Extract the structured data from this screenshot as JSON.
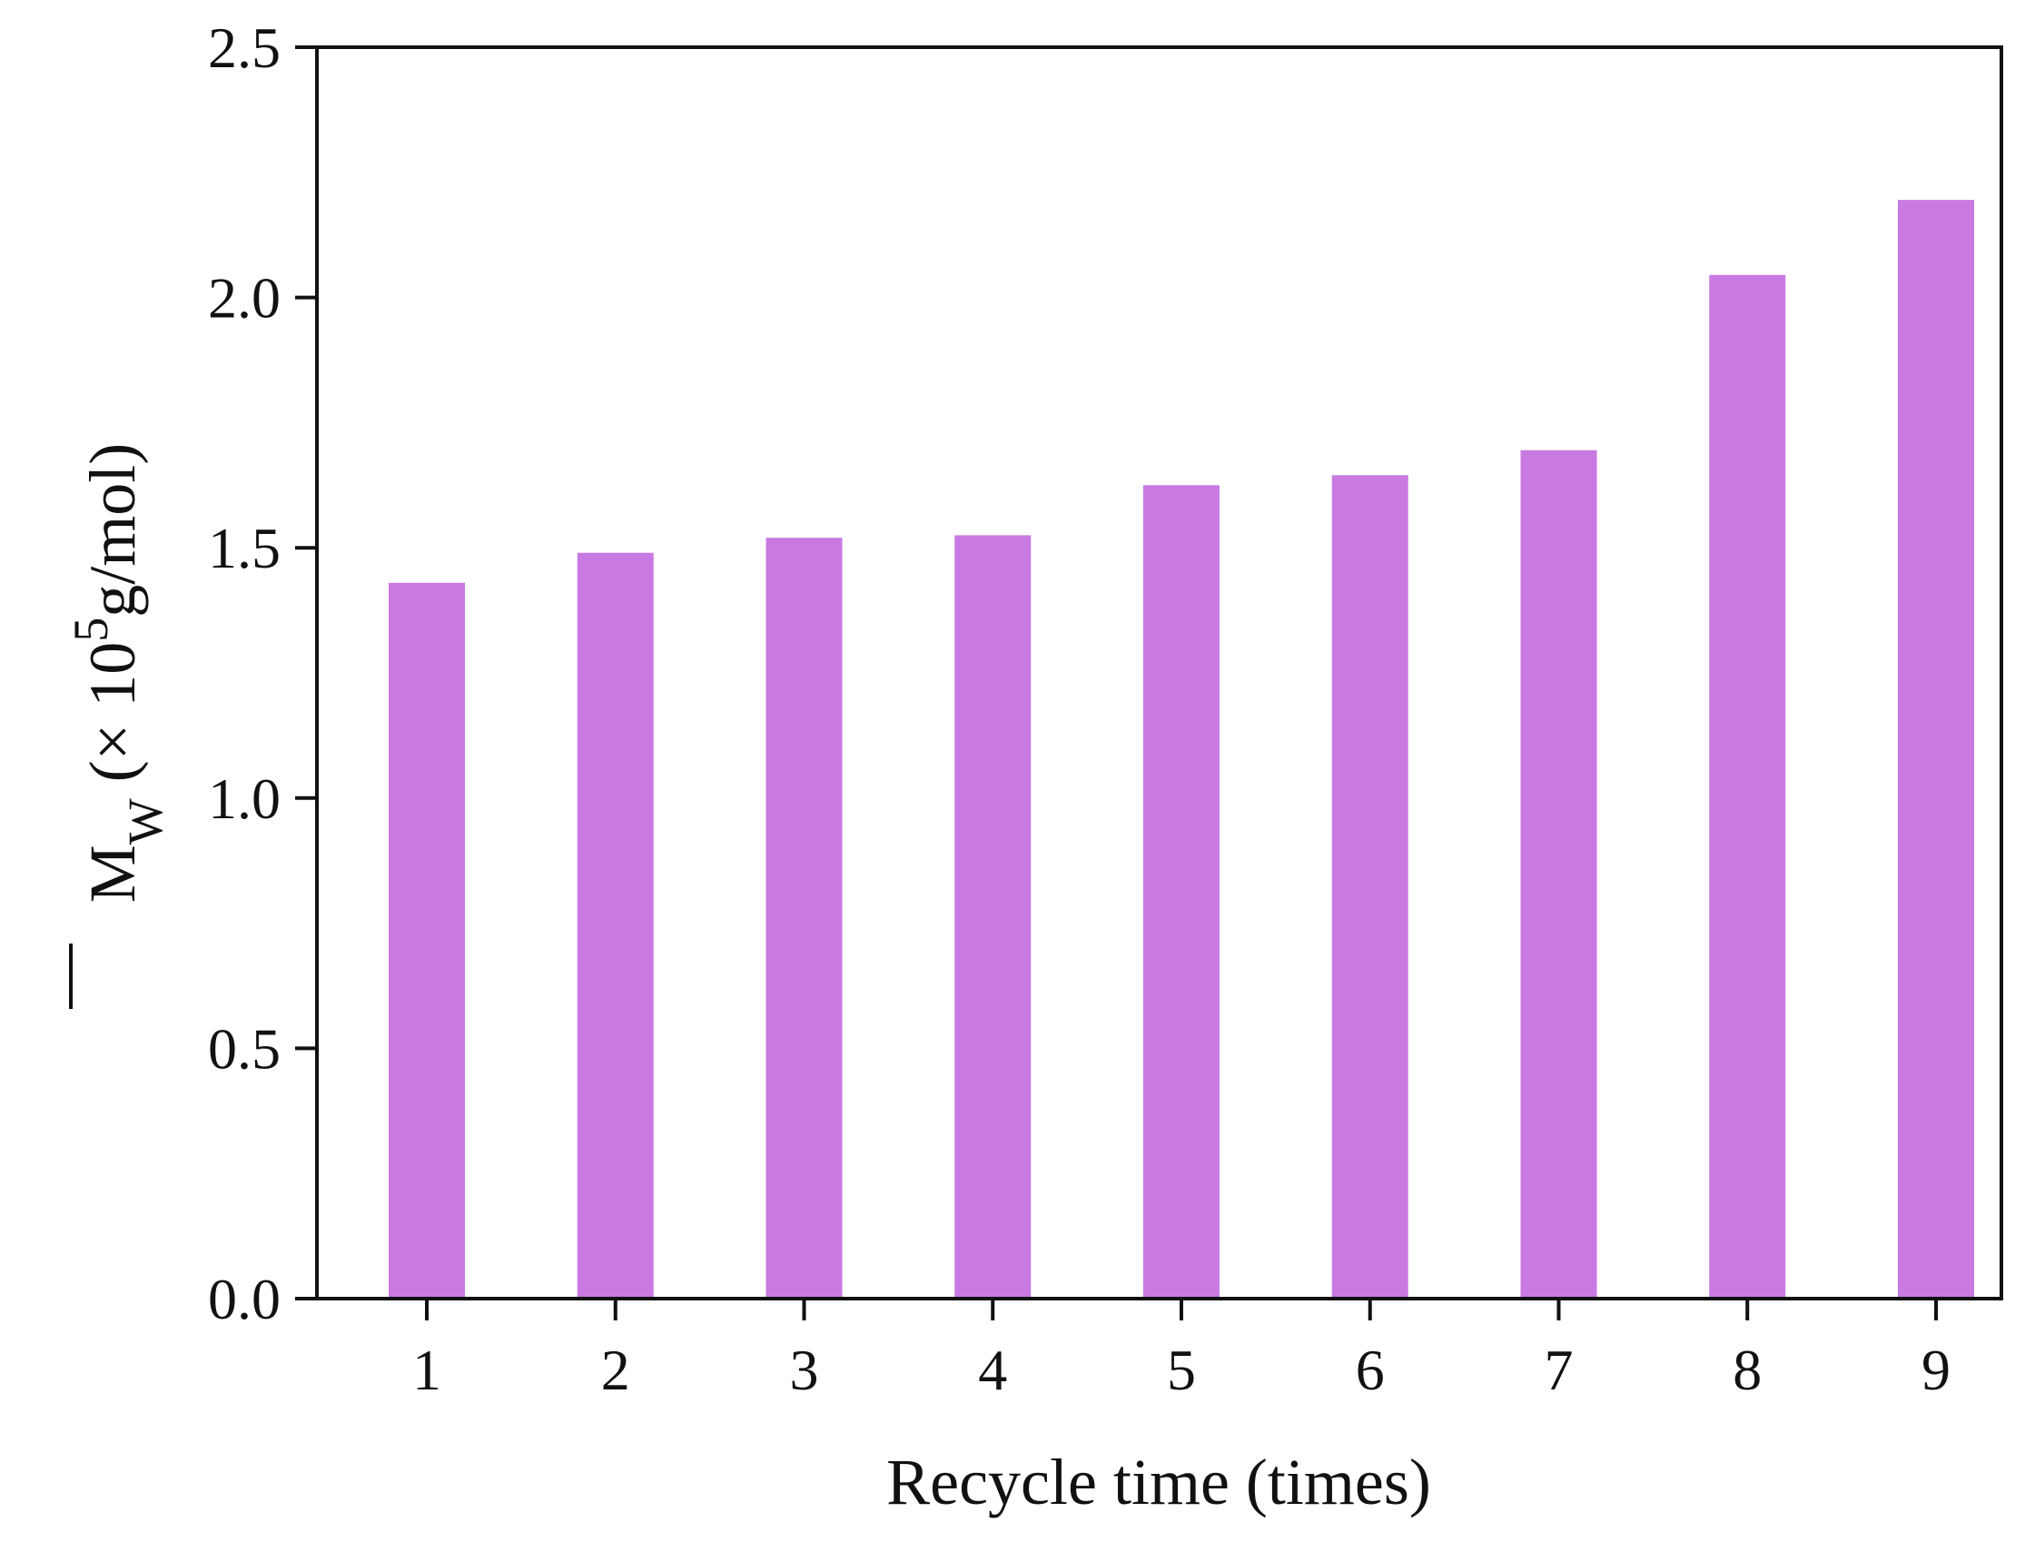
{
  "chart_data": {
    "type": "bar",
    "categories": [
      "1",
      "2",
      "3",
      "4",
      "5",
      "6",
      "7",
      "8",
      "9"
    ],
    "values": [
      1.43,
      1.49,
      1.52,
      1.525,
      1.625,
      1.645,
      1.695,
      2.045,
      2.195
    ],
    "xlabel": "Recycle time (times)",
    "ylabel": {
      "symbol": "M",
      "subscript": "W",
      "prefix": " (× 10",
      "exponent": "5",
      "suffix": "g/mol)"
    },
    "ylim": [
      0,
      2.5
    ],
    "yticks": [
      "0.0",
      "0.5",
      "1.0",
      "1.5",
      "2.0",
      "2.5"
    ],
    "bar_color": "#c87ae2",
    "grid": false,
    "legend": "none"
  }
}
